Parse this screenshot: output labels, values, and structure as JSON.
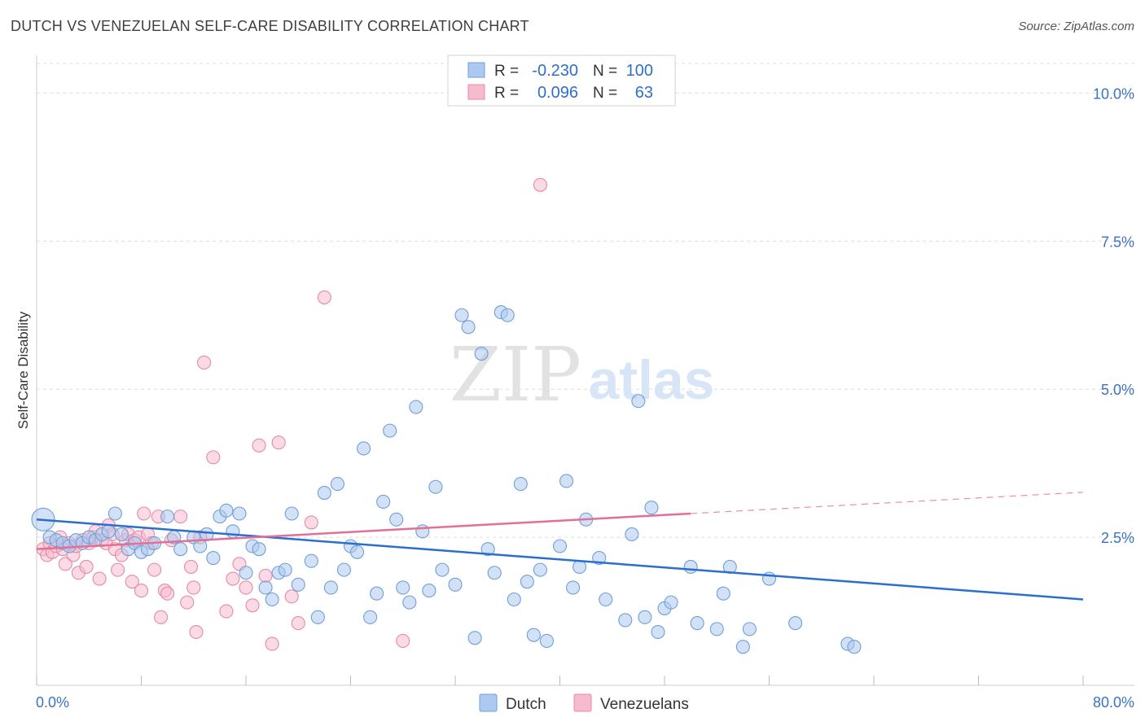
{
  "header": {
    "title": "DUTCH VS VENEZUELAN SELF-CARE DISABILITY CORRELATION CHART",
    "source": "Source: ZipAtlas.com"
  },
  "watermark": {
    "zip": "ZIP",
    "atlas": "atlas"
  },
  "legend_box": {
    "rows": [
      {
        "r_label": "R =",
        "r_value": "-0.230",
        "n_label": "N =",
        "n_value": "100",
        "swatch_fill": "#adc9ef",
        "swatch_stroke": "#6b9fdc"
      },
      {
        "r_label": "R =",
        "r_value": "0.096",
        "n_label": "N =",
        "n_value": "63",
        "swatch_fill": "#f6bccd",
        "swatch_stroke": "#e889a6"
      }
    ]
  },
  "bottom_legend": [
    {
      "label": "Dutch",
      "fill": "#adc9ef",
      "stroke": "#6b9fdc"
    },
    {
      "label": "Venezuelans",
      "fill": "#f6bccd",
      "stroke": "#e889a6"
    }
  ],
  "colors": {
    "dutch_fill": "#adc9ef",
    "dutch_stroke": "#6f9fd8",
    "dutch_line": "#2a6fce",
    "venez_fill": "#f6bccd",
    "venez_stroke": "#e58aa6",
    "venez_line": "#e36f96",
    "tick_label": "#3a72c4",
    "grid": "#dedede"
  },
  "chart_data": {
    "type": "scatter",
    "title": "DUTCH VS VENEZUELAN SELF-CARE DISABILITY CORRELATION CHART",
    "xlabel": "",
    "ylabel": "Self-Care Disability",
    "xlim": [
      0,
      80
    ],
    "ylim": [
      0,
      10.5
    ],
    "x_tick_labels": [
      {
        "value": 0,
        "label": "0.0%"
      },
      {
        "value": 80,
        "label": "80.0%"
      }
    ],
    "y_tick_labels": [
      {
        "value": 2.5,
        "label": "2.5%"
      },
      {
        "value": 5.0,
        "label": "5.0%"
      },
      {
        "value": 7.5,
        "label": "7.5%"
      },
      {
        "value": 10.0,
        "label": "10.0%"
      }
    ],
    "series": [
      {
        "name": "Dutch",
        "r": -0.23,
        "n": 100,
        "trend": {
          "x0": 0,
          "y0": 2.8,
          "x1": 80,
          "y1": 1.45
        },
        "points": [
          [
            0.5,
            2.8
          ],
          [
            1,
            2.5
          ],
          [
            1.5,
            2.45
          ],
          [
            2,
            2.4
          ],
          [
            2.5,
            2.35
          ],
          [
            3,
            2.45
          ],
          [
            3.5,
            2.4
          ],
          [
            4,
            2.5
          ],
          [
            4.5,
            2.45
          ],
          [
            5,
            2.55
          ],
          [
            5.5,
            2.6
          ],
          [
            6,
            2.9
          ],
          [
            6.5,
            2.55
          ],
          [
            7,
            2.3
          ],
          [
            7.5,
            2.4
          ],
          [
            8,
            2.25
          ],
          [
            8.5,
            2.3
          ],
          [
            9,
            2.4
          ],
          [
            10,
            2.85
          ],
          [
            10.5,
            2.5
          ],
          [
            11,
            2.3
          ],
          [
            12,
            2.5
          ],
          [
            12.5,
            2.35
          ],
          [
            13,
            2.55
          ],
          [
            13.5,
            2.15
          ],
          [
            14,
            2.85
          ],
          [
            14.5,
            2.95
          ],
          [
            15,
            2.6
          ],
          [
            15.5,
            2.9
          ],
          [
            16,
            1.9
          ],
          [
            16.5,
            2.35
          ],
          [
            17,
            2.3
          ],
          [
            17.5,
            1.65
          ],
          [
            18,
            1.45
          ],
          [
            18.5,
            1.9
          ],
          [
            19,
            1.95
          ],
          [
            19.5,
            2.9
          ],
          [
            20,
            1.7
          ],
          [
            21,
            2.1
          ],
          [
            21.5,
            1.15
          ],
          [
            22,
            3.25
          ],
          [
            22.5,
            1.65
          ],
          [
            23,
            3.4
          ],
          [
            23.5,
            1.95
          ],
          [
            24,
            2.35
          ],
          [
            24.5,
            2.25
          ],
          [
            25,
            4.0
          ],
          [
            25.5,
            1.15
          ],
          [
            26,
            1.55
          ],
          [
            26.5,
            3.1
          ],
          [
            27,
            4.3
          ],
          [
            27.5,
            2.8
          ],
          [
            28,
            1.65
          ],
          [
            28.5,
            1.4
          ],
          [
            29,
            4.7
          ],
          [
            29.5,
            2.6
          ],
          [
            30,
            1.6
          ],
          [
            30.5,
            3.35
          ],
          [
            31,
            1.95
          ],
          [
            32,
            1.7
          ],
          [
            32.5,
            6.25
          ],
          [
            33,
            6.05
          ],
          [
            33.5,
            0.8
          ],
          [
            34,
            5.6
          ],
          [
            34.5,
            2.3
          ],
          [
            35,
            1.9
          ],
          [
            35.5,
            6.3
          ],
          [
            36,
            6.25
          ],
          [
            36.5,
            1.45
          ],
          [
            37,
            3.4
          ],
          [
            37.5,
            1.75
          ],
          [
            38,
            0.85
          ],
          [
            38.5,
            1.95
          ],
          [
            39,
            0.75
          ],
          [
            40,
            2.35
          ],
          [
            40.5,
            3.45
          ],
          [
            41,
            1.65
          ],
          [
            41.5,
            2.0
          ],
          [
            42,
            2.8
          ],
          [
            43,
            2.15
          ],
          [
            43.5,
            1.45
          ],
          [
            45,
            1.1
          ],
          [
            45.5,
            2.55
          ],
          [
            46,
            4.8
          ],
          [
            46.5,
            1.15
          ],
          [
            47,
            3.0
          ],
          [
            47.5,
            0.9
          ],
          [
            48,
            1.3
          ],
          [
            48.5,
            1.4
          ],
          [
            50,
            2.0
          ],
          [
            50.5,
            1.05
          ],
          [
            52,
            0.95
          ],
          [
            52.5,
            1.55
          ],
          [
            53,
            2.0
          ],
          [
            54,
            0.65
          ],
          [
            54.5,
            0.95
          ],
          [
            56,
            1.8
          ],
          [
            58,
            1.05
          ],
          [
            62,
            0.7
          ],
          [
            62.5,
            0.65
          ]
        ]
      },
      {
        "name": "Venezuelans",
        "r": 0.096,
        "n": 63,
        "trend": {
          "x0": 0,
          "y0": 2.3,
          "x1": 50,
          "y1": 2.9
        },
        "trend_extension": {
          "x0": 50,
          "y0": 2.9,
          "x1": 80,
          "y1": 3.26
        },
        "points": [
          [
            0.5,
            2.3
          ],
          [
            0.8,
            2.2
          ],
          [
            1,
            2.4
          ],
          [
            1.2,
            2.25
          ],
          [
            1.5,
            2.35
          ],
          [
            1.8,
            2.5
          ],
          [
            2,
            2.3
          ],
          [
            2.2,
            2.05
          ],
          [
            2.5,
            2.4
          ],
          [
            2.8,
            2.2
          ],
          [
            3,
            2.35
          ],
          [
            3.2,
            1.9
          ],
          [
            3.5,
            2.45
          ],
          [
            3.8,
            2.0
          ],
          [
            4,
            2.4
          ],
          [
            4.3,
            2.5
          ],
          [
            4.5,
            2.6
          ],
          [
            4.8,
            1.8
          ],
          [
            5,
            2.45
          ],
          [
            5.3,
            2.4
          ],
          [
            5.5,
            2.7
          ],
          [
            5.8,
            2.55
          ],
          [
            6,
            2.3
          ],
          [
            6.2,
            1.95
          ],
          [
            6.5,
            2.2
          ],
          [
            6.8,
            2.45
          ],
          [
            7,
            2.55
          ],
          [
            7.3,
            1.75
          ],
          [
            7.5,
            2.45
          ],
          [
            7.8,
            2.5
          ],
          [
            8,
            1.6
          ],
          [
            8.2,
            2.9
          ],
          [
            8.5,
            2.55
          ],
          [
            8.8,
            2.4
          ],
          [
            9,
            1.95
          ],
          [
            9.3,
            2.85
          ],
          [
            9.5,
            1.15
          ],
          [
            9.8,
            1.6
          ],
          [
            10,
            1.55
          ],
          [
            10.3,
            2.45
          ],
          [
            11,
            2.85
          ],
          [
            11.5,
            1.4
          ],
          [
            11.8,
            2.0
          ],
          [
            12,
            1.65
          ],
          [
            12.2,
            0.9
          ],
          [
            12.5,
            2.5
          ],
          [
            12.8,
            5.45
          ],
          [
            13.5,
            3.85
          ],
          [
            14.5,
            1.25
          ],
          [
            15,
            1.8
          ],
          [
            15.5,
            2.05
          ],
          [
            16,
            1.65
          ],
          [
            16.5,
            1.35
          ],
          [
            17,
            4.05
          ],
          [
            17.5,
            1.85
          ],
          [
            18,
            0.7
          ],
          [
            18.5,
            4.1
          ],
          [
            19.5,
            1.5
          ],
          [
            20,
            1.05
          ],
          [
            21,
            2.75
          ],
          [
            22,
            6.55
          ],
          [
            28,
            0.75
          ],
          [
            38.5,
            8.45
          ]
        ]
      }
    ]
  }
}
